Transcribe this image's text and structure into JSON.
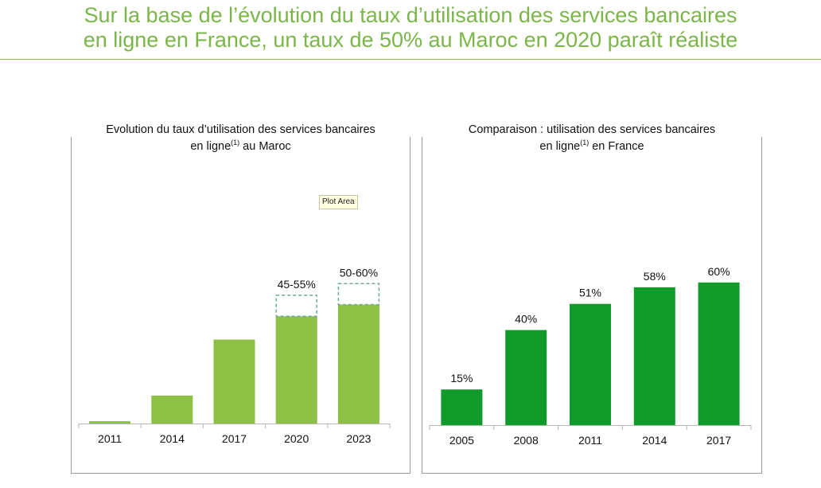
{
  "headline": {
    "line1": "Sur la base de l’évolution du taux d’utilisation des services bancaires",
    "line2": "en ligne en France, un taux de 50% au Maroc en 2020 paraît réaliste"
  },
  "tooltip": "Plot Area",
  "colors": {
    "left_bar": "#8dc045",
    "right_bar": "#109a2a",
    "headline": "#7ab648",
    "projection_border": "#6fa7a0"
  },
  "chart_data": [
    {
      "type": "bar",
      "title_line1": "Evolution du taux d’utilisation des services bancaires",
      "title_line2_pre": "en ligne",
      "title_sup": "(1)",
      "title_line2_post": " au Maroc",
      "categories": [
        "2011",
        "2014",
        "2017",
        "2020",
        "2023"
      ],
      "values": [
        1,
        12,
        36,
        46,
        51
      ],
      "projection_upper": [
        null,
        null,
        null,
        55,
        60
      ],
      "data_labels": [
        "",
        "",
        "",
        "45-55%",
        "50-60%"
      ],
      "ylim": [
        0,
        70
      ]
    },
    {
      "type": "bar",
      "title_line1": "Comparaison : utilisation des services bancaires",
      "title_line2_pre": "en ligne",
      "title_sup": "(1)",
      "title_line2_post": " en France",
      "categories": [
        "2005",
        "2008",
        "2011",
        "2014",
        "2017"
      ],
      "values": [
        15,
        40,
        51,
        58,
        60
      ],
      "data_labels": [
        "15%",
        "40%",
        "51%",
        "58%",
        "60%"
      ],
      "ylim": [
        0,
        70
      ]
    }
  ]
}
